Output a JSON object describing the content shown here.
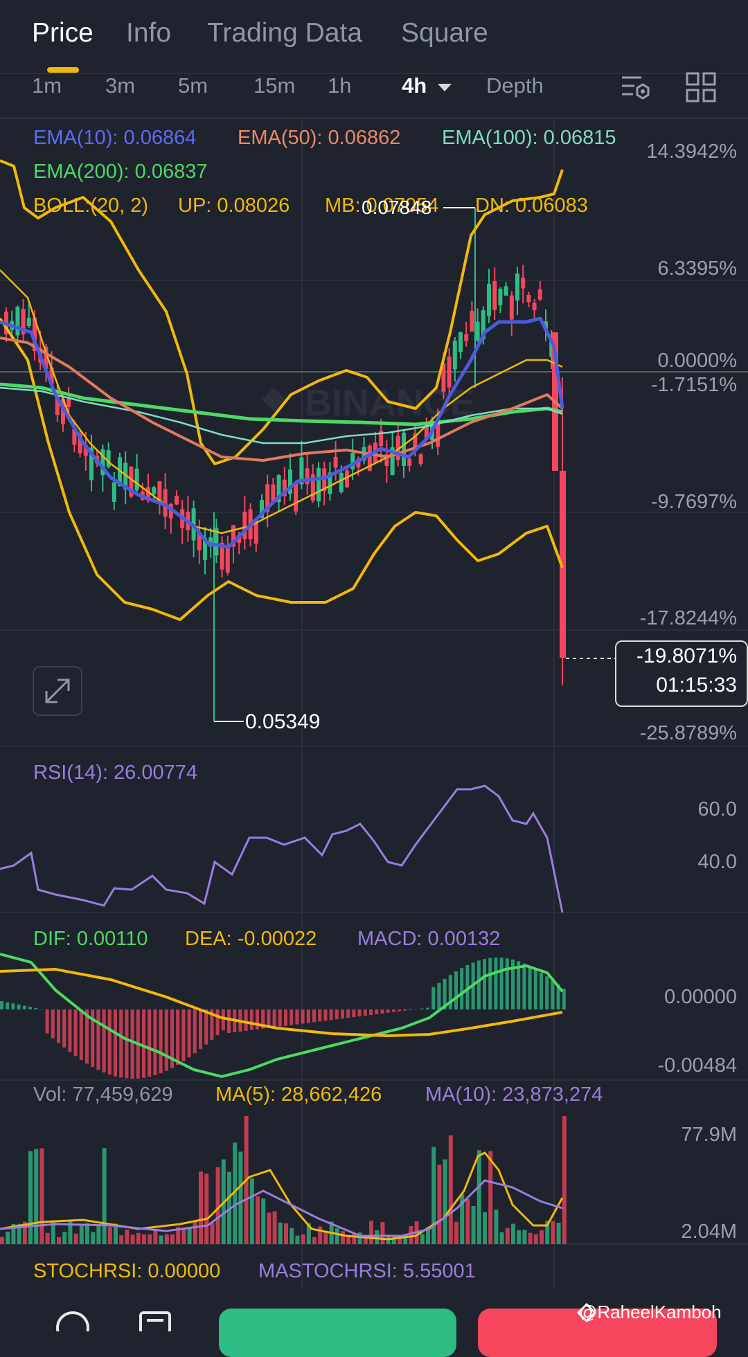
{
  "tabs": [
    {
      "label": "Price",
      "active": true
    },
    {
      "label": "Info",
      "active": false
    },
    {
      "label": "Trading Data",
      "active": false
    },
    {
      "label": "Square",
      "active": false
    }
  ],
  "timeframes": [
    {
      "label": "1m"
    },
    {
      "label": "3m"
    },
    {
      "label": "5m"
    },
    {
      "label": "15m"
    },
    {
      "label": "1h"
    },
    {
      "label": "4h",
      "active": true
    },
    {
      "label": "Depth"
    }
  ],
  "toolbar_icons": [
    "chart-settings-icon",
    "grid-layout-icon"
  ],
  "indicators": {
    "ema10": "EMA(10): 0.06864",
    "ema50": "EMA(50): 0.06862",
    "ema100": "EMA(100): 0.06815",
    "ema200": "EMA(200): 0.06837",
    "boll": "BOLL:(20, 2)",
    "boll_up": "UP: 0.08026",
    "boll_mb": "MB: 0.07054",
    "boll_dn": "DN: 0.06083"
  },
  "price_axis": [
    "14.3942%",
    "6.3395%",
    "0.0000%",
    "-1.7151%",
    "-9.7697%",
    "-17.8244%",
    "-25.8789%"
  ],
  "high_label": "0.07848",
  "low_label": "0.05349",
  "current": {
    "change": "-19.8071%",
    "countdown": "01:15:33"
  },
  "rsi": {
    "label": "RSI(14): 26.00774",
    "axis": [
      "60.0",
      "40.0"
    ]
  },
  "macd": {
    "dif": "DIF: 0.00110",
    "dea": "DEA: -0.00022",
    "macd": "MACD: 0.00132",
    "axis": [
      "0.00000",
      "-0.00484"
    ]
  },
  "volume": {
    "vol": "Vol: 77,459,629",
    "ma5": "MA(5): 28,662,426",
    "ma10": "MA(10): 23,873,274",
    "axis": [
      "77.9M",
      "2.04M"
    ]
  },
  "stochrsi": {
    "stoch": "STOCHRSI: 0.00000",
    "ma": "MASTOCHRSI: 5.55001"
  },
  "credit": "@RaheelKamboh",
  "colors": {
    "up": "#2ebd85",
    "down": "#f6465d",
    "ema10": "#4a5cdc",
    "ema50": "#e07a5f",
    "ema100": "#7fdcc0",
    "ema200": "#4cd964",
    "boll": "#f0b90b",
    "rsi": "#9b7ddb"
  },
  "chart_data": {
    "type": "line",
    "title": "",
    "price_range_pct": [
      -25.8789,
      14.3942
    ],
    "high": 0.07848,
    "low": 0.05349,
    "close_change_pct": -19.8071,
    "ema10": [
      0.06864
    ],
    "ema50": [
      0.06862
    ],
    "ema100": [
      0.06815
    ],
    "ema200": [
      0.06837
    ],
    "boll": {
      "up": 0.08026,
      "mb": 0.07054,
      "dn": 0.06083
    },
    "rsi14": 26.00774,
    "macd": {
      "dif": 0.0011,
      "dea": -0.00022,
      "hist": 0.00132
    },
    "volume": {
      "last": 77459629,
      "ma5": 28662426,
      "ma10": 23873274
    }
  }
}
